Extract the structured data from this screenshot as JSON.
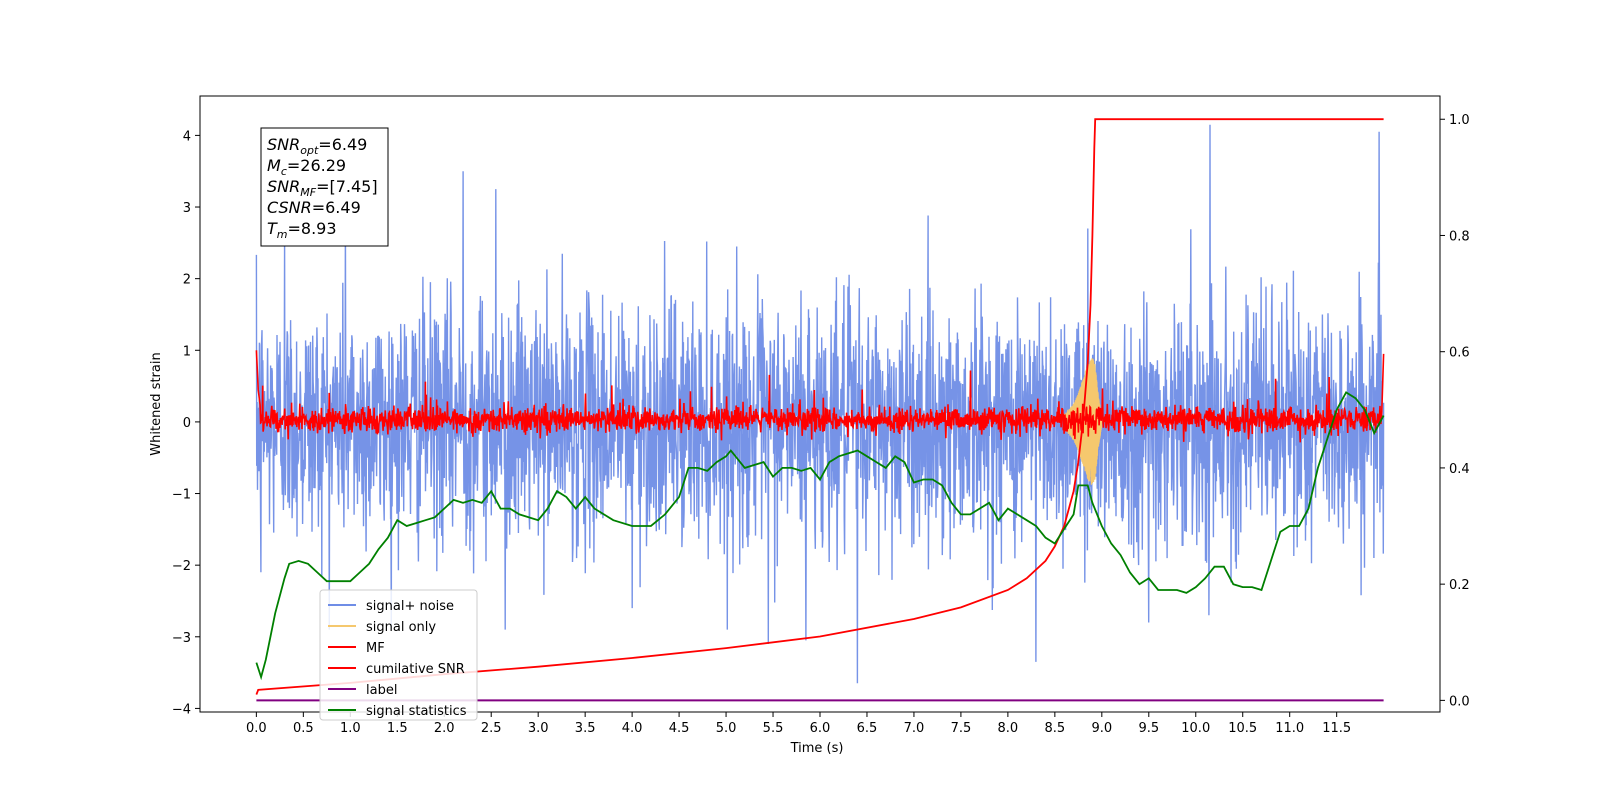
{
  "chart_data": {
    "type": "line",
    "xlabel": "Time (s)",
    "ylabel": "Whitened strain",
    "xlim": [
      -0.6,
      12.6
    ],
    "ylim": [
      -4.05,
      4.55
    ],
    "y2lim": [
      -0.02,
      1.04
    ],
    "x_ticks": [
      0.0,
      0.5,
      1.0,
      1.5,
      2.0,
      2.5,
      3.0,
      3.5,
      4.0,
      4.5,
      5.0,
      5.5,
      6.0,
      6.5,
      7.0,
      7.5,
      8.0,
      8.5,
      9.0,
      9.5,
      10.0,
      10.5,
      11.0,
      11.5
    ],
    "x_tick_labels": [
      "0.0",
      "0.5",
      "1.0",
      "1.5",
      "2.0",
      "2.5",
      "3.0",
      "3.5",
      "4.0",
      "4.5",
      "5.0",
      "5.5",
      "6.0",
      "6.5",
      "7.0",
      "7.5",
      "8.0",
      "8.5",
      "9.0",
      "9.5",
      "10.0",
      "10.5",
      "11.0",
      "11.5"
    ],
    "y_ticks": [
      -4,
      -3,
      -2,
      -1,
      0,
      1,
      2,
      3,
      4
    ],
    "y_tick_labels": [
      "−4",
      "−3",
      "−2",
      "−1",
      "0",
      "1",
      "2",
      "3",
      "4"
    ],
    "y2_ticks": [
      0.0,
      0.2,
      0.4,
      0.6,
      0.8,
      1.0
    ],
    "y2_tick_labels": [
      "0.0",
      "0.2",
      "0.4",
      "0.6",
      "0.8",
      "1.0"
    ],
    "legend": {
      "placement": "lower-left",
      "entries": [
        {
          "label": "signal+ noise",
          "color": "#6f8de6"
        },
        {
          "label": "signal only",
          "color": "#f5c86e"
        },
        {
          "label": "MF",
          "color": "#ff0000"
        },
        {
          "label": "cumilative SNR",
          "color": "#ff0000"
        },
        {
          "label": "label",
          "color": "#800080"
        },
        {
          "label": "signal statistics",
          "color": "#008000"
        }
      ]
    },
    "annotation": {
      "placement": "top-left",
      "lines": [
        {
          "base": "SNR",
          "sub": "opt",
          "rest": "=6.49"
        },
        {
          "base": "M",
          "sub": "c",
          "rest": "=26.29"
        },
        {
          "base": "SNR",
          "sub": "MF",
          "rest": "=[7.45]"
        },
        {
          "base": "CSNR",
          "sub": "",
          "rest": "=6.49"
        },
        {
          "base": "T",
          "sub": "m",
          "rest": "=8.93"
        }
      ]
    },
    "series": [
      {
        "name": "signal+ noise",
        "axis": "left",
        "color": "#6f8de6",
        "x_range": [
          0.0,
          12.0
        ],
        "envelope": {
          "typical_low": -1.6,
          "typical_high": 1.6
        },
        "peaks": [
          [
            0.05,
            -2.1
          ],
          [
            0.3,
            2.6
          ],
          [
            0.95,
            2.9
          ],
          [
            2.2,
            3.5
          ],
          [
            2.55,
            3.25
          ],
          [
            6.4,
            -3.65
          ],
          [
            5.45,
            -3.1
          ],
          [
            8.3,
            -3.35
          ],
          [
            8.85,
            2.7
          ],
          [
            10.15,
            4.15
          ],
          [
            11.95,
            4.05
          ],
          [
            2.65,
            -2.9
          ],
          [
            5.85,
            -3.05
          ],
          [
            4.0,
            -2.6
          ],
          [
            9.5,
            -2.8
          ]
        ]
      },
      {
        "name": "signal only",
        "axis": "left",
        "color": "#f5c86e",
        "x": [
          8.6,
          8.7,
          8.75,
          8.8,
          8.85,
          8.9,
          8.93,
          8.96,
          9.0
        ],
        "amplitude": [
          0.1,
          0.25,
          0.4,
          0.6,
          0.8,
          0.9,
          0.8,
          0.4,
          0.05
        ]
      },
      {
        "name": "MF",
        "axis": "left",
        "color": "#ff0000",
        "x_range": [
          0.0,
          12.0
        ],
        "envelope": {
          "typical_low": -0.15,
          "typical_high": 0.25
        },
        "edges": [
          [
            0.0,
            1.0
          ],
          [
            0.02,
            0.45
          ],
          [
            12.0,
            0.95
          ]
        ]
      },
      {
        "name": "cumilative SNR",
        "axis": "right",
        "color": "#ff0000",
        "x": [
          0.0,
          0.02,
          1.0,
          2.0,
          3.0,
          4.0,
          5.0,
          6.0,
          7.0,
          7.5,
          8.0,
          8.2,
          8.4,
          8.5,
          8.6,
          8.7,
          8.75,
          8.8,
          8.85,
          8.88,
          8.9,
          8.92,
          8.93,
          9.0,
          10.0,
          11.0,
          12.0
        ],
        "y": [
          0.01,
          0.018,
          0.03,
          0.045,
          0.058,
          0.073,
          0.09,
          0.11,
          0.14,
          0.16,
          0.19,
          0.21,
          0.24,
          0.265,
          0.3,
          0.36,
          0.41,
          0.48,
          0.58,
          0.68,
          0.8,
          0.95,
          1.0,
          1.0,
          1.0,
          1.0,
          1.0
        ]
      },
      {
        "name": "label",
        "axis": "right",
        "color": "#800080",
        "x": [
          0.0,
          12.0
        ],
        "y": [
          0.0,
          0.0
        ]
      },
      {
        "name": "signal statistics",
        "axis": "right",
        "color": "#008000",
        "x": [
          0.0,
          0.05,
          0.1,
          0.2,
          0.3,
          0.35,
          0.45,
          0.55,
          0.65,
          0.75,
          0.85,
          1.0,
          1.1,
          1.2,
          1.3,
          1.4,
          1.5,
          1.6,
          1.7,
          1.8,
          1.9,
          2.0,
          2.1,
          2.2,
          2.3,
          2.4,
          2.5,
          2.6,
          2.7,
          2.8,
          3.0,
          3.1,
          3.2,
          3.3,
          3.4,
          3.5,
          3.6,
          3.7,
          3.8,
          4.0,
          4.2,
          4.35,
          4.5,
          4.6,
          4.7,
          4.8,
          4.9,
          5.0,
          5.05,
          5.1,
          5.2,
          5.3,
          5.4,
          5.5,
          5.6,
          5.7,
          5.8,
          5.9,
          6.0,
          6.1,
          6.2,
          6.3,
          6.4,
          6.5,
          6.6,
          6.7,
          6.8,
          6.9,
          7.0,
          7.1,
          7.2,
          7.3,
          7.4,
          7.5,
          7.6,
          7.7,
          7.8,
          7.9,
          8.0,
          8.1,
          8.2,
          8.3,
          8.4,
          8.5,
          8.6,
          8.7,
          8.75,
          8.8,
          8.85,
          8.9,
          8.95,
          9.0,
          9.1,
          9.2,
          9.3,
          9.4,
          9.5,
          9.6,
          9.7,
          9.8,
          9.9,
          10.0,
          10.1,
          10.2,
          10.3,
          10.4,
          10.5,
          10.6,
          10.7,
          10.8,
          10.9,
          11.0,
          11.1,
          11.2,
          11.3,
          11.4,
          11.5,
          11.6,
          11.7,
          11.8,
          11.9,
          12.0
        ],
        "y": [
          0.065,
          0.04,
          0.07,
          0.15,
          0.21,
          0.235,
          0.24,
          0.235,
          0.22,
          0.205,
          0.205,
          0.205,
          0.22,
          0.235,
          0.26,
          0.28,
          0.31,
          0.3,
          0.305,
          0.31,
          0.315,
          0.33,
          0.345,
          0.34,
          0.345,
          0.34,
          0.36,
          0.33,
          0.33,
          0.32,
          0.31,
          0.33,
          0.36,
          0.35,
          0.33,
          0.35,
          0.33,
          0.32,
          0.31,
          0.3,
          0.3,
          0.32,
          0.35,
          0.4,
          0.4,
          0.395,
          0.41,
          0.42,
          0.43,
          0.42,
          0.4,
          0.405,
          0.41,
          0.385,
          0.4,
          0.4,
          0.395,
          0.4,
          0.38,
          0.41,
          0.42,
          0.425,
          0.43,
          0.42,
          0.41,
          0.4,
          0.42,
          0.41,
          0.375,
          0.38,
          0.38,
          0.37,
          0.34,
          0.32,
          0.32,
          0.33,
          0.34,
          0.31,
          0.33,
          0.32,
          0.31,
          0.3,
          0.28,
          0.27,
          0.295,
          0.32,
          0.37,
          0.37,
          0.37,
          0.34,
          0.32,
          0.3,
          0.27,
          0.25,
          0.22,
          0.2,
          0.21,
          0.19,
          0.19,
          0.19,
          0.185,
          0.195,
          0.21,
          0.23,
          0.23,
          0.2,
          0.195,
          0.195,
          0.19,
          0.24,
          0.29,
          0.3,
          0.3,
          0.33,
          0.4,
          0.45,
          0.5,
          0.53,
          0.52,
          0.5,
          0.46,
          0.49
        ]
      }
    ]
  }
}
